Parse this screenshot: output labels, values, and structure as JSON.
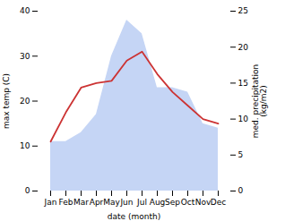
{
  "chart_data": {
    "type": "line",
    "categories": [
      "Jan",
      "Feb",
      "Mar",
      "Apr",
      "May",
      "Jun",
      "Jul",
      "Aug",
      "Sep",
      "Oct",
      "Nov",
      "Dec"
    ],
    "series": [
      {
        "type": "area",
        "color": "#c5d5f5",
        "values": [
          11,
          11,
          13,
          17,
          30,
          38,
          35,
          23,
          23,
          22,
          15,
          14
        ]
      },
      {
        "type": "line",
        "color": "#cc3333",
        "values": [
          11,
          17.5,
          23,
          24,
          24.5,
          29,
          31,
          26,
          22,
          19,
          16,
          15
        ]
      }
    ],
    "xlabel": "date (month)",
    "ylabel": "max temp (C)",
    "y2label": "med. precipitation\n(kg/m2)",
    "ylim": [
      0,
      40
    ],
    "yticks": [
      0,
      10,
      20,
      30,
      40
    ],
    "y2lim": [
      0,
      25
    ],
    "y2ticks": [
      0,
      5,
      10,
      15,
      20,
      25
    ],
    "grid": false
  }
}
